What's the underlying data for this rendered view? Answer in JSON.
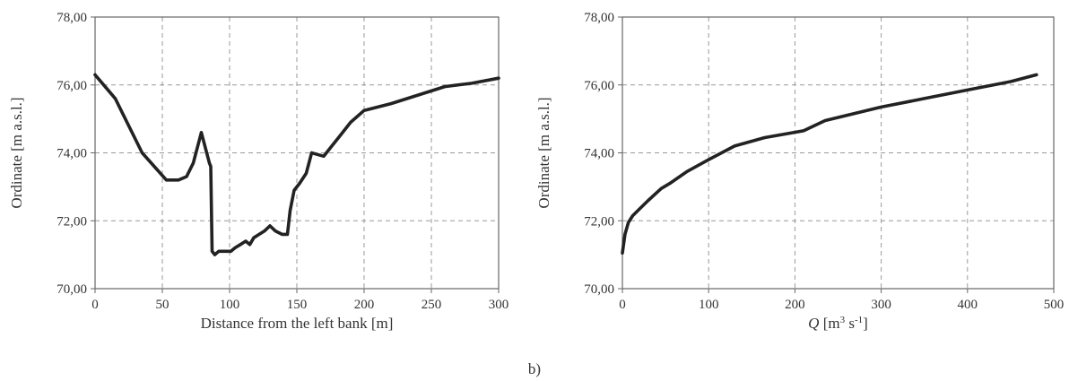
{
  "panel_label": "b)",
  "chart_data": [
    {
      "type": "line",
      "xlabel": "Distance from the left bank [m]",
      "ylabel": "Ordinate [m a.s.l.]",
      "xlim": [
        0,
        300
      ],
      "ylim": [
        70,
        78
      ],
      "xticks": [
        0,
        50,
        100,
        150,
        200,
        250,
        300
      ],
      "xtick_labels": [
        "0",
        "50",
        "100",
        "150",
        "200",
        "250",
        "300"
      ],
      "yticks": [
        70,
        72,
        74,
        76,
        78
      ],
      "ytick_labels": [
        "70,00",
        "72,00",
        "74,00",
        "76,00",
        "78,00"
      ],
      "grid": true,
      "series": [
        {
          "x": [
            0,
            15,
            35,
            53,
            62,
            68,
            73,
            79,
            85,
            86,
            87,
            89,
            92,
            94,
            97,
            101,
            104,
            108,
            112,
            115,
            118,
            122,
            126,
            130,
            134,
            139,
            143,
            145,
            148,
            152,
            157,
            161,
            170,
            176,
            182,
            190,
            200,
            220,
            240,
            260,
            280,
            300
          ],
          "y": [
            76.3,
            75.6,
            74.0,
            73.2,
            73.2,
            73.3,
            73.7,
            74.6,
            73.7,
            73.6,
            71.1,
            71.0,
            71.1,
            71.1,
            71.1,
            71.1,
            71.2,
            71.3,
            71.4,
            71.3,
            71.5,
            71.6,
            71.7,
            71.85,
            71.7,
            71.6,
            71.6,
            72.3,
            72.9,
            73.1,
            73.4,
            74.0,
            73.9,
            74.2,
            74.5,
            74.9,
            75.25,
            75.45,
            75.7,
            75.95,
            76.05,
            76.2
          ]
        }
      ]
    },
    {
      "type": "line",
      "xlabel_var": "Q",
      "xlabel_unit_pre": " [m",
      "xlabel_unit_sup1": "3",
      "xlabel_unit_mid": " s",
      "xlabel_unit_sup2": "-1",
      "xlabel_unit_post": "]",
      "ylabel": "Ordinate [m a.s.l.]",
      "xlim": [
        0,
        500
      ],
      "ylim": [
        70,
        78
      ],
      "xticks": [
        0,
        100,
        200,
        300,
        400,
        500
      ],
      "xtick_labels": [
        "0",
        "100",
        "200",
        "300",
        "400",
        "500"
      ],
      "yticks": [
        70,
        72,
        74,
        76,
        78
      ],
      "ytick_labels": [
        "70,00",
        "72,00",
        "74,00",
        "76,00",
        "78,00"
      ],
      "grid": true,
      "series": [
        {
          "x": [
            0,
            3,
            7,
            12,
            20,
            30,
            45,
            55,
            75,
            100,
            130,
            165,
            210,
            235,
            300,
            350,
            400,
            450,
            480
          ],
          "y": [
            71.05,
            71.6,
            71.95,
            72.15,
            72.35,
            72.6,
            72.95,
            73.1,
            73.45,
            73.8,
            74.2,
            74.45,
            74.65,
            74.95,
            75.35,
            75.6,
            75.85,
            76.1,
            76.3
          ]
        }
      ]
    }
  ]
}
